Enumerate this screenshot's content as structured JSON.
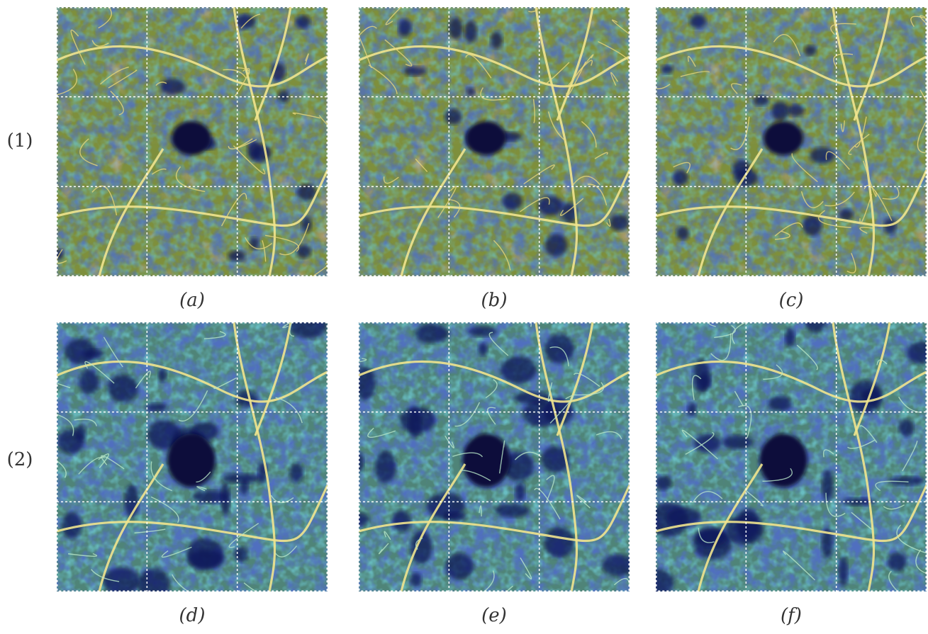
{
  "row_labels": [
    "(1)",
    "(2)"
  ],
  "panels": [
    {
      "label": "(a)"
    },
    {
      "label": "(b)"
    },
    {
      "label": "(c)"
    },
    {
      "label": "(d)"
    },
    {
      "label": "(e)"
    },
    {
      "label": "(f)"
    }
  ]
}
